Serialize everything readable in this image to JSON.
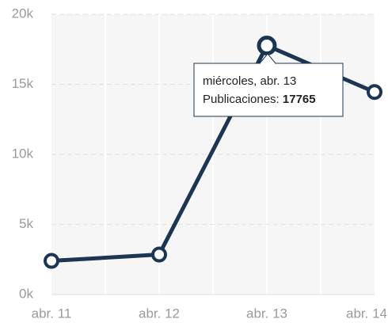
{
  "chart_data": {
    "type": "line",
    "categories": [
      "abr. 11",
      "abr. 12",
      "abr. 13",
      "abr. 14"
    ],
    "series": [
      {
        "color": "#1c3553",
        "values": [
          2400,
          2850,
          17765,
          14450
        ]
      }
    ],
    "ylim": [
      0,
      20000
    ],
    "yticks": [
      {
        "value": 0,
        "label": "0k"
      },
      {
        "value": 5000,
        "label": "5k"
      },
      {
        "value": 10000,
        "label": "10k"
      },
      {
        "value": 15000,
        "label": "15k"
      },
      {
        "value": 20000,
        "label": "20k"
      }
    ],
    "grid": true,
    "tooltip": {
      "title": "miércoles, abr. 13",
      "label": "Publicaciones:"
    }
  }
}
